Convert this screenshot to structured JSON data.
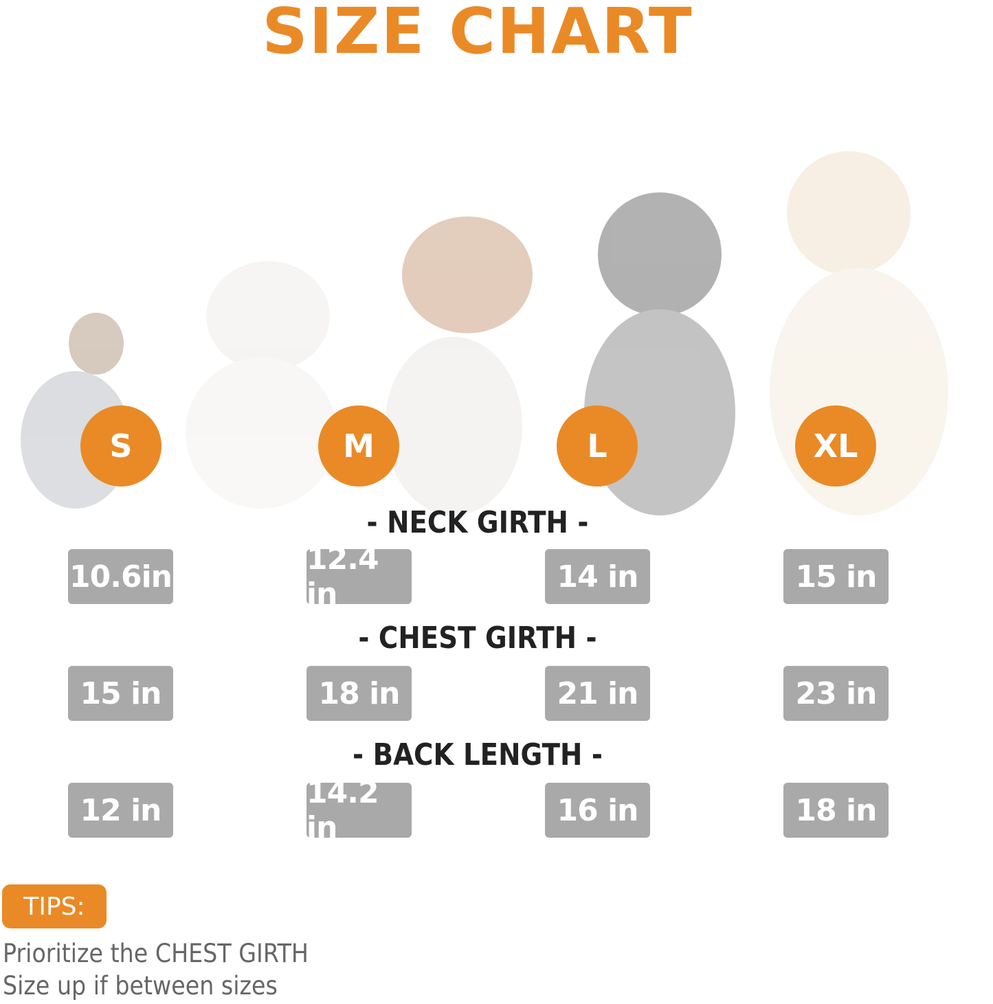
{
  "title": "SIZE CHART",
  "sizes": [
    "S",
    "M",
    "L",
    "XL"
  ],
  "measurements": [
    {
      "label": "- NECK GIRTH -",
      "values": [
        "10.6in",
        "12.4 in",
        "14 in",
        "15 in"
      ]
    },
    {
      "label": "- CHEST GIRTH -",
      "values": [
        "15 in",
        "18 in",
        "21 in",
        "23 in"
      ]
    },
    {
      "label": "- BACK LENGTH -",
      "values": [
        "12 in",
        "14.2 in",
        "16 in",
        "18 in"
      ]
    }
  ],
  "tips": {
    "label": "TIPS:",
    "lines": [
      "Prioritize the CHEST GIRTH",
      "Size up if between sizes"
    ]
  },
  "colors": {
    "accent": "#ea8a26",
    "value_box": "#a9a9a9"
  }
}
